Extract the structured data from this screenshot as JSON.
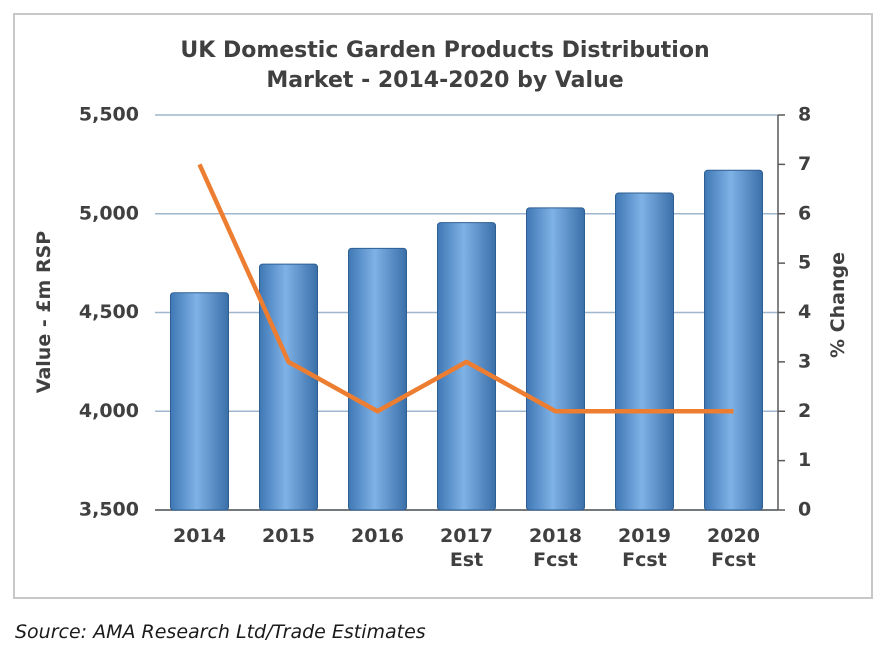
{
  "chart_data": {
    "type": "bar-line",
    "title": "UK Domestic Garden Products Distribution\nMarket - 2014-2020 by Value",
    "y_label": "Value - £m RSP",
    "y2_label": "% Change",
    "categories": [
      "2014",
      "2015",
      "2016",
      "2017\nEst",
      "2018\nFcst",
      "2019\nFcst",
      "2020\nFcst"
    ],
    "series": [
      {
        "type": "bar",
        "color": "#5b9bd5",
        "values": [
          4600,
          4745,
          4825,
          4955,
          5030,
          5105,
          5220
        ]
      },
      {
        "type": "line",
        "color": "#ed7d31",
        "axis": "y2",
        "values": [
          7,
          3,
          2,
          3,
          2,
          2,
          2
        ]
      }
    ],
    "ylim": [
      3500,
      5500
    ],
    "yticks": [
      {
        "value": 3500,
        "label": "3,500"
      },
      {
        "value": 4000,
        "label": "4,000"
      },
      {
        "value": 4500,
        "label": "4,500"
      },
      {
        "value": 5000,
        "label": "5,000"
      },
      {
        "value": 5500,
        "label": "5,500"
      }
    ],
    "y2lim": [
      0,
      8
    ],
    "y2ticks": [
      0,
      1,
      2,
      3,
      4,
      5,
      6,
      7,
      8
    ],
    "grid": true,
    "source": "Source: AMA Research Ltd/Trade Estimates"
  }
}
